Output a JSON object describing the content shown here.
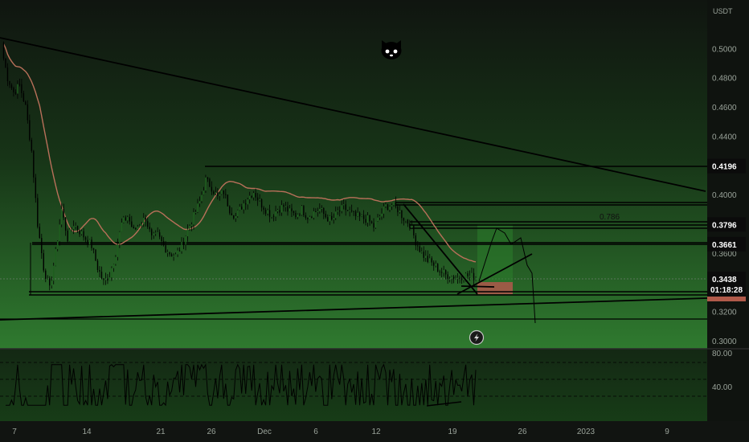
{
  "chart_data": {
    "type": "candlestick",
    "currency": "USDT",
    "price_axis": {
      "min": 0.3,
      "max": 0.52,
      "ticks": [
        "0.5000",
        "0.4800",
        "0.4600",
        "0.4400",
        "0.4200",
        "0.4000",
        "0.3800",
        "0.3600",
        "0.3400",
        "0.3200",
        "0.3000"
      ]
    },
    "time_axis": {
      "ticks": [
        "7",
        "14",
        "21",
        "26",
        "Dec",
        "6",
        "12",
        "19",
        "26",
        "2023",
        "9"
      ]
    },
    "price_badges": [
      {
        "value": "0.4196",
        "price": 0.4196
      },
      {
        "value": "0.3796",
        "price": 0.3796
      },
      {
        "value": "0.3661",
        "price": 0.3661
      }
    ],
    "current_price": {
      "value": "0.3438",
      "price": 0.3438,
      "countdown": "01:18:28"
    },
    "fib_label": {
      "value": "0.786",
      "price": 0.3826
    },
    "horizontal_levels": [
      0.4196,
      0.3926,
      0.3908,
      0.3814,
      0.3796,
      0.3777,
      0.3666,
      0.3655,
      0.3336,
      0.3316,
      0.3165
    ],
    "rsi": {
      "ticks": [
        "80.00",
        "40.00"
      ],
      "range": [
        0,
        100
      ]
    },
    "close_series": [
      0.5,
      0.48,
      0.47,
      0.475,
      0.46,
      0.43,
      0.38,
      0.35,
      0.335,
      0.36,
      0.39,
      0.37,
      0.38,
      0.375,
      0.37,
      0.365,
      0.35,
      0.34,
      0.345,
      0.36,
      0.38,
      0.385,
      0.375,
      0.38,
      0.384,
      0.37,
      0.372,
      0.365,
      0.36,
      0.358,
      0.365,
      0.376,
      0.385,
      0.395,
      0.41,
      0.405,
      0.398,
      0.402,
      0.39,
      0.385,
      0.392,
      0.398,
      0.402,
      0.395,
      0.39,
      0.386,
      0.39,
      0.392,
      0.388,
      0.386,
      0.39,
      0.385,
      0.388,
      0.39,
      0.385,
      0.382,
      0.388,
      0.391,
      0.388,
      0.385,
      0.384,
      0.383,
      0.378,
      0.385,
      0.392,
      0.393,
      0.39,
      0.384,
      0.38,
      0.368,
      0.36,
      0.355,
      0.352,
      0.348,
      0.345,
      0.344,
      0.343,
      0.345,
      0.344,
      0.3438
    ]
  }
}
